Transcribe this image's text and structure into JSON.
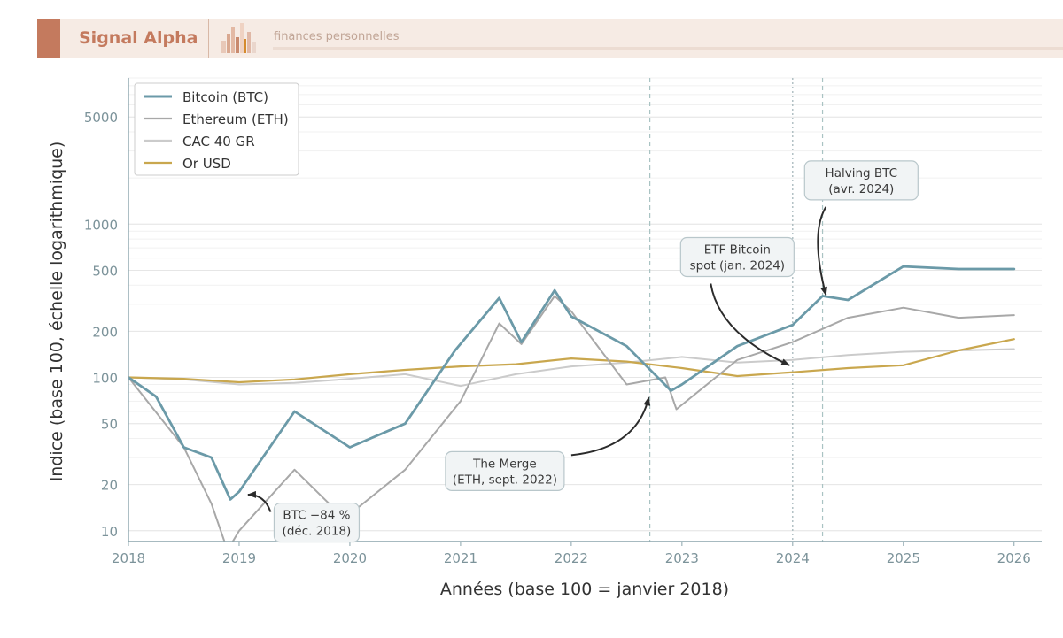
{
  "header": {
    "brand": "Signal Alpha",
    "tagline": "finances personnelles",
    "brand_color": "#c47a5e"
  },
  "chart_data": {
    "type": "line",
    "title": "",
    "xlabel": "Années (base 100 = janvier 2018)",
    "ylabel": "Indice (base 100, échelle logarithmique)",
    "y_scale": "log",
    "xlim": [
      2018,
      2026.25
    ],
    "ylim": [
      8.5,
      9000
    ],
    "xticks": [
      2018,
      2019,
      2020,
      2021,
      2022,
      2023,
      2024,
      2025,
      2026
    ],
    "yticks": [
      10,
      20,
      50,
      100,
      200,
      500,
      1000,
      5000
    ],
    "grid": true,
    "legend_position": "top-left",
    "series": [
      {
        "name": "Bitcoin (BTC)",
        "color": "#6b9aa8",
        "x": [
          2018.0,
          2018.25,
          2018.5,
          2018.75,
          2018.92,
          2019.0,
          2019.5,
          2020.0,
          2020.5,
          2020.95,
          2021.35,
          2021.55,
          2021.85,
          2022.0,
          2022.5,
          2022.9,
          2023.0,
          2023.5,
          2024.0,
          2024.27,
          2024.5,
          2025.0,
          2025.5,
          2026.0
        ],
        "y": [
          100,
          75,
          35,
          30,
          16,
          18,
          60,
          35,
          50,
          150,
          330,
          170,
          370,
          250,
          160,
          82,
          90,
          160,
          220,
          340,
          320,
          530,
          510,
          510
        ]
      },
      {
        "name": "Ethereum (ETH)",
        "color": "#a8a8a8",
        "x": [
          2018.0,
          2018.5,
          2018.75,
          2018.88,
          2018.92,
          2019.0,
          2019.5,
          2019.95,
          2020.5,
          2021.0,
          2021.35,
          2021.55,
          2021.85,
          2022.0,
          2022.5,
          2022.85,
          2022.95,
          2023.5,
          2024.0,
          2024.5,
          2025.0,
          2025.5,
          2026.0
        ],
        "y": [
          100,
          35,
          15,
          8,
          8,
          10,
          25,
          12,
          25,
          70,
          225,
          165,
          340,
          270,
          90,
          100,
          62,
          130,
          170,
          245,
          285,
          245,
          255
        ]
      },
      {
        "name": "CAC 40 GR",
        "color": "#cbcbcb",
        "x": [
          2018.0,
          2018.5,
          2019.0,
          2019.5,
          2020.0,
          2020.5,
          2021.0,
          2021.5,
          2022.0,
          2022.5,
          2023.0,
          2023.5,
          2024.0,
          2024.5,
          2025.0,
          2025.5,
          2026.0
        ],
        "y": [
          100,
          97,
          90,
          92,
          98,
          105,
          88,
          105,
          118,
          125,
          136,
          125,
          130,
          140,
          147,
          150,
          153
        ]
      },
      {
        "name": "Or USD",
        "color": "#c9a74e",
        "x": [
          2018.0,
          2018.5,
          2019.0,
          2019.5,
          2020.0,
          2020.5,
          2021.0,
          2021.5,
          2022.0,
          2022.5,
          2023.0,
          2023.5,
          2024.0,
          2024.5,
          2025.0,
          2025.5,
          2026.0
        ],
        "y": [
          100,
          98,
          93,
          97,
          105,
          112,
          118,
          122,
          133,
          127,
          115,
          102,
          108,
          115,
          120,
          150,
          178
        ]
      }
    ],
    "event_lines": [
      {
        "x": 2022.71,
        "style": "dashed"
      },
      {
        "x": 2024.0,
        "style": "dotted"
      },
      {
        "x": 2024.27,
        "style": "dashed"
      }
    ],
    "annotations": [
      {
        "text": [
          "BTC −84 %",
          "(déc. 2018)"
        ],
        "label_x": 2019.7,
        "label_y": 11.3,
        "point_x": 2019.08,
        "point_y": 17.2
      },
      {
        "text": [
          "The Merge",
          "(ETH, sept. 2022)"
        ],
        "label_x": 2021.4,
        "label_y": 24.5,
        "point_x": 2022.7,
        "point_y": 74
      },
      {
        "text": [
          "ETF Bitcoin",
          "spot (jan. 2024)"
        ],
        "label_x": 2023.5,
        "label_y": 610,
        "point_x": 2023.97,
        "point_y": 120
      },
      {
        "text": [
          "Halving BTC",
          "(avr. 2024)"
        ],
        "label_x": 2024.62,
        "label_y": 1930,
        "point_x": 2024.3,
        "point_y": 345
      }
    ]
  }
}
